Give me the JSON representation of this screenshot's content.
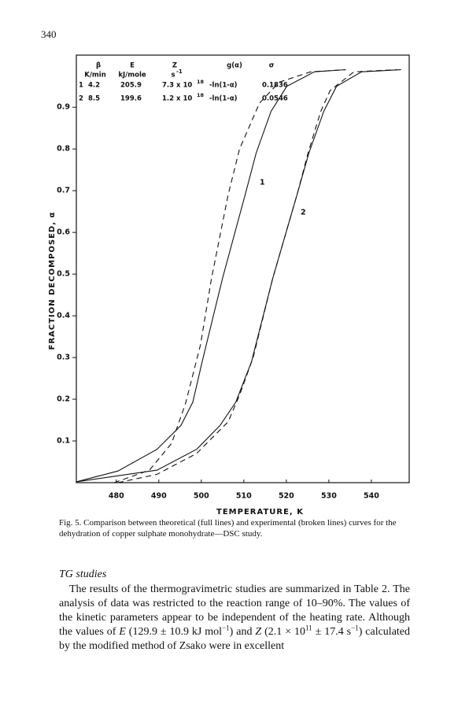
{
  "page_number": "340",
  "chart_data": {
    "type": "line",
    "xlabel": "TEMPERATURE, K",
    "ylabel": "FRACTION DECOMPOSED, α",
    "xlim": [
      470.6,
      548.9
    ],
    "ylim": [
      0,
      1.025
    ],
    "xticks": [
      480,
      490,
      500,
      510,
      520,
      530,
      540
    ],
    "yticks": [
      0.1,
      0.2,
      0.3,
      0.4,
      0.5,
      0.6,
      0.7,
      0.8,
      0.9
    ],
    "series": [
      {
        "color": "#111111",
        "dashed": false,
        "x": [
          470.6,
          480.4,
          489.6,
          495.2,
          498.0,
          500.2,
          505.0,
          510.3,
          512.9,
          516.4,
          520.1,
          526.6,
          534.0
        ],
        "values": [
          0.002,
          0.028,
          0.08,
          0.137,
          0.193,
          0.29,
          0.49,
          0.69,
          0.79,
          0.89,
          0.95,
          0.985,
          0.99
        ]
      },
      {
        "color": "#111111",
        "dashed": true,
        "x": [
          479.5,
          487.8,
          493.0,
          496.3,
          499.8,
          502.4,
          506.3,
          509.0,
          513.7,
          518.3,
          525.7,
          534.0
        ],
        "values": [
          0.0,
          0.03,
          0.094,
          0.19,
          0.33,
          0.49,
          0.69,
          0.8,
          0.91,
          0.96,
          0.985,
          0.99
        ]
      },
      {
        "color": "#111111",
        "dashed": false,
        "x": [
          470.6,
          489.6,
          498.9,
          504.4,
          508.1,
          511.8,
          516.8,
          522.5,
          525.3,
          528.8,
          531.8,
          537.7,
          547.0
        ],
        "values": [
          0.002,
          0.03,
          0.08,
          0.137,
          0.193,
          0.29,
          0.49,
          0.69,
          0.79,
          0.89,
          0.95,
          0.985,
          0.99
        ]
      },
      {
        "color": "#111111",
        "dashed": true,
        "x": [
          480.4,
          489.6,
          498.9,
          506.3,
          509.0,
          512.2,
          516.8,
          522.5,
          525.1,
          528.1,
          530.3,
          535.9,
          546.0
        ],
        "values": [
          0.0,
          0.02,
          0.07,
          0.146,
          0.21,
          0.3,
          0.49,
          0.69,
          0.79,
          0.89,
          0.94,
          0.985,
          0.99
        ]
      }
    ],
    "annotations": [
      "1",
      "2"
    ],
    "parameter_table": {
      "headers": [
        "β",
        "E",
        "Z",
        "g(α)",
        "σ"
      ],
      "units": [
        "K/min",
        "kJ/mole",
        [
          "s",
          "-1"
        ]
      ],
      "rows": [
        [
          "1",
          "4.2",
          "205.9",
          [
            "7.3 x 10",
            "18"
          ],
          "-ln(1-α)",
          "0.1836"
        ],
        [
          "2",
          "8.5",
          "199.6",
          [
            "1.2 x 10",
            "18"
          ],
          "-ln(1-α)",
          "0.0546"
        ]
      ]
    }
  },
  "caption": "Fig. 5. Comparison between theoretical (full lines) and experimental (broken lines) curves for the dehydration of copper sulphate monohydrate—DSC study.",
  "section_heading": "TG studies",
  "paragraph": [
    "The results of the thermogravimetric studies are summarized in Table 2. The analysis of data was restricted to the reaction range of 10–90%. The values of the kinetic parameters appear to be independent of the heating rate. Although the values of ",
    "E",
    " (129.9 ± 10.9 kJ mol",
    "−1",
    ") and ",
    "Z",
    " (2.1 × 10",
    "11",
    " ± 17.4 s",
    "−1",
    ") calculated by the modified method of Zsako were in excellent"
  ]
}
